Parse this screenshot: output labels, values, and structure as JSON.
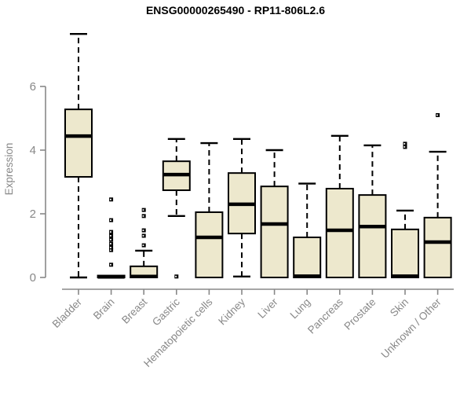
{
  "chart_data": {
    "type": "boxplot",
    "title": "ENSG00000265490 - RP11-806L2.6",
    "ylabel": "Expression",
    "xlabel": "",
    "ylim": [
      0,
      7.8
    ],
    "yticks": [
      0,
      2,
      4,
      6
    ],
    "grid": false,
    "legend": "none",
    "categories": [
      "Bladder",
      "Brain",
      "Breast",
      "Gastric",
      "Hematopoietic cells",
      "Kidney",
      "Liver",
      "Lung",
      "Pancreas",
      "Prostate",
      "Skin",
      "Unknown / Other"
    ],
    "series": [
      {
        "category": "Bladder",
        "whisker_low": 0.0,
        "q1": 3.16,
        "median": 4.44,
        "q3": 5.28,
        "whisker_high": 7.65,
        "outliers": []
      },
      {
        "category": "Brain",
        "whisker_low": 0.0,
        "q1": 0.0,
        "median": 0.02,
        "q3": 0.06,
        "whisker_high": 0.06,
        "outliers": [
          0.4,
          0.86,
          0.94,
          1.06,
          1.19,
          1.31,
          1.43,
          1.8,
          2.45
        ]
      },
      {
        "category": "Breast",
        "whisker_low": 0.0,
        "q1": 0.0,
        "median": 0.03,
        "q3": 0.35,
        "whisker_high": 0.84,
        "outliers": [
          1.01,
          1.31,
          1.48,
          1.93,
          2.12
        ]
      },
      {
        "category": "Gastric",
        "whisker_low": 1.93,
        "q1": 2.74,
        "median": 3.23,
        "q3": 3.65,
        "whisker_high": 4.35,
        "outliers": [
          0.03
        ]
      },
      {
        "category": "Hematopoietic cells",
        "whisker_low": 0.0,
        "q1": 0.0,
        "median": 1.26,
        "q3": 2.05,
        "whisker_high": 4.22,
        "outliers": []
      },
      {
        "category": "Kidney",
        "whisker_low": 0.03,
        "q1": 1.38,
        "median": 2.3,
        "q3": 3.28,
        "whisker_high": 4.35,
        "outliers": []
      },
      {
        "category": "Liver",
        "whisker_low": 0.0,
        "q1": 0.0,
        "median": 1.68,
        "q3": 2.86,
        "whisker_high": 4.0,
        "outliers": []
      },
      {
        "category": "Lung",
        "whisker_low": 0.0,
        "q1": 0.0,
        "median": 0.04,
        "q3": 1.26,
        "whisker_high": 2.95,
        "outliers": []
      },
      {
        "category": "Pancreas",
        "whisker_low": 0.0,
        "q1": 0.0,
        "median": 1.48,
        "q3": 2.79,
        "whisker_high": 4.45,
        "outliers": []
      },
      {
        "category": "Prostate",
        "whisker_low": 0.0,
        "q1": 0.0,
        "median": 1.6,
        "q3": 2.59,
        "whisker_high": 4.15,
        "outliers": []
      },
      {
        "category": "Skin",
        "whisker_low": 0.0,
        "q1": 0.0,
        "median": 0.04,
        "q3": 1.51,
        "whisker_high": 2.1,
        "outliers": [
          4.1,
          4.2
        ]
      },
      {
        "category": "Unknown / Other",
        "whisker_low": 0.0,
        "q1": 0.0,
        "median": 1.11,
        "q3": 1.88,
        "whisker_high": 3.95,
        "outliers": [
          5.1
        ]
      }
    ],
    "colors": {
      "box_fill": "#EDE8CD",
      "box_stroke": "#000000",
      "median": "#000000",
      "outlier": "#000000",
      "axis": "#888888",
      "tick_label": "#888888",
      "title_color": "#000000",
      "background": "#FFFFFF"
    }
  }
}
